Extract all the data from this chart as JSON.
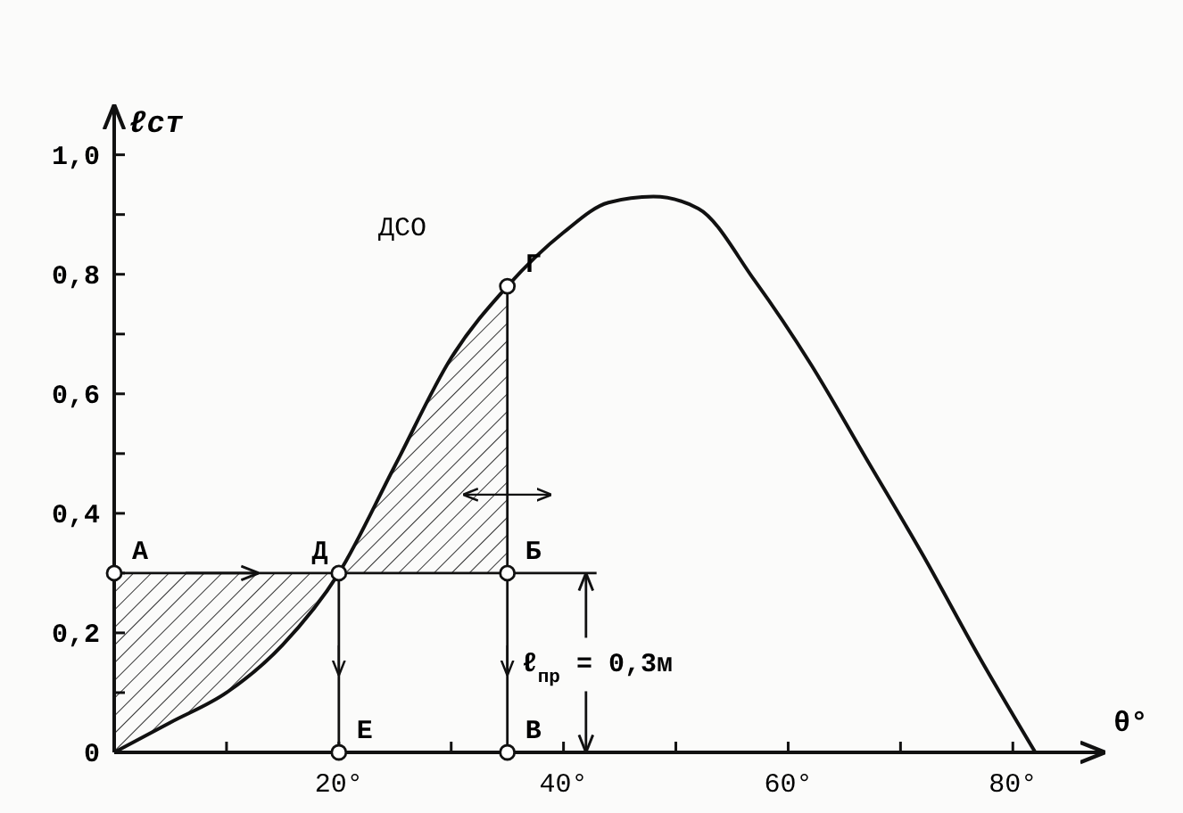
{
  "chart_data": {
    "type": "line",
    "xlabel": "θ°",
    "ylabel": "ℓст",
    "xlim": [
      0,
      88
    ],
    "ylim": [
      0,
      1.08
    ],
    "xticks": [
      {
        "value": 10,
        "label": null
      },
      {
        "value": 20,
        "label": "20°"
      },
      {
        "value": 30,
        "label": null
      },
      {
        "value": 40,
        "label": "40°"
      },
      {
        "value": 50,
        "label": null
      },
      {
        "value": 60,
        "label": "60°"
      },
      {
        "value": 70,
        "label": null
      },
      {
        "value": 80,
        "label": "80°"
      }
    ],
    "yticks": [
      {
        "value": 0,
        "label": "0"
      },
      {
        "value": 0.1,
        "label": null
      },
      {
        "value": 0.2,
        "label": "0,2"
      },
      {
        "value": 0.3,
        "label": null
      },
      {
        "value": 0.4,
        "label": "0,4"
      },
      {
        "value": 0.5,
        "label": null
      },
      {
        "value": 0.6,
        "label": "0,6"
      },
      {
        "value": 0.7,
        "label": null
      },
      {
        "value": 0.8,
        "label": "0,8"
      },
      {
        "value": 0.9,
        "label": null
      },
      {
        "value": 1.0,
        "label": "1,0"
      }
    ],
    "series": [
      {
        "color": "#111111",
        "x": [
          0,
          5,
          10,
          15,
          20,
          25,
          30,
          35,
          40,
          44,
          48,
          52,
          57,
          62,
          67,
          72,
          77,
          82
        ],
        "values": [
          0,
          0.05,
          0.1,
          0.18,
          0.3,
          0.48,
          0.66,
          0.78,
          0.87,
          0.92,
          0.93,
          0.91,
          0.79,
          0.65,
          0.49,
          0.33,
          0.16,
          0
        ]
      },
      {
        "type": "scatter",
        "color": "#111111",
        "marker": "circle",
        "x": [
          0,
          20,
          35,
          35,
          20,
          35
        ],
        "values": [
          0.3,
          0.3,
          0.3,
          0.78,
          0,
          0
        ]
      }
    ],
    "ref_lines": [
      {
        "axis": "y",
        "value": 0.3
      },
      {
        "axis": "x",
        "value": 20
      },
      {
        "axis": "x",
        "value": 35
      }
    ],
    "annotations": [
      "ДСО",
      {
        "text": "А",
        "x": 0,
        "y": 0.3
      },
      {
        "text": "Д",
        "x": 16,
        "y": 0.3
      },
      {
        "text": "Б",
        "x": 35,
        "y": 0.3
      },
      {
        "text": "Г",
        "x": 35,
        "y": 0.78
      },
      {
        "text": "Е",
        "x": 20,
        "y": 0
      },
      {
        "text": "В",
        "x": 35,
        "y": 0
      },
      {
        "text": "ℓ$_{пр}$ = 0,3м",
        "x": 42,
        "y": 0.3
      }
    ]
  }
}
